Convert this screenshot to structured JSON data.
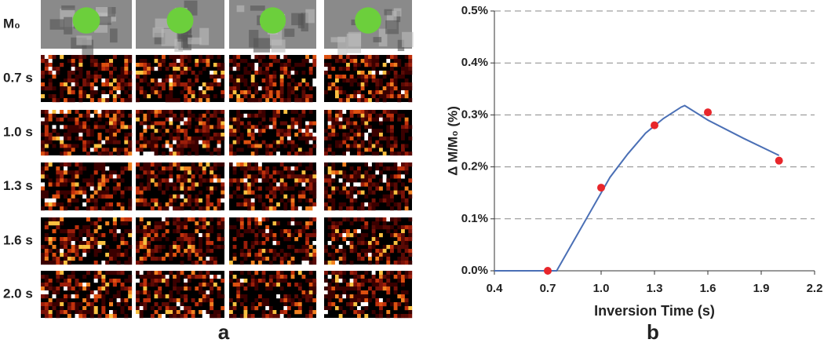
{
  "panel_a": {
    "label": "a",
    "rows": [
      "M₀",
      "0.7 s",
      "1.0 s",
      "1.3 s",
      "1.6 s",
      "2.0 s"
    ]
  },
  "chart_data": {
    "type": "line",
    "panel_label": "b",
    "x_label": "Inversion Time (s)",
    "y_label": "Δ M/M₀ (%)",
    "xlim": [
      0.4,
      2.2
    ],
    "xticks": [
      0.4,
      0.7,
      {
        "value": 1,
        "label": "1.0"
      },
      1.3,
      1.6,
      1.9,
      2.2
    ],
    "ylim": [
      0,
      0.5
    ],
    "yticks": [
      {
        "value": 0,
        "label": "0.0%"
      },
      {
        "value": 0.1,
        "label": "0.1%"
      },
      {
        "value": 0.2,
        "label": "0.2%"
      },
      {
        "value": 0.3,
        "label": "0.3%"
      },
      {
        "value": 0.4,
        "label": "0.4%"
      },
      {
        "value": 0.5,
        "label": "0.5%"
      }
    ],
    "grid": true,
    "series": [
      {
        "color": "#4a6fb5",
        "marker": false,
        "x": [
          0.4,
          0.75,
          0.85,
          0.95,
          1.05,
          1.15,
          1.25,
          1.35,
          1.45,
          1.47,
          1.6,
          1.8,
          2.0
        ],
        "values": [
          0,
          0,
          0.06,
          0.12,
          0.18,
          0.225,
          0.265,
          0.293,
          0.315,
          0.318,
          0.29,
          0.255,
          0.222
        ]
      },
      {
        "color": "#e8262b",
        "marker": true,
        "line": false,
        "x": [
          0.7,
          1.0,
          1.3,
          1.6,
          2.0
        ],
        "values": [
          0,
          0.16,
          0.28,
          0.305,
          0.212
        ]
      }
    ]
  }
}
